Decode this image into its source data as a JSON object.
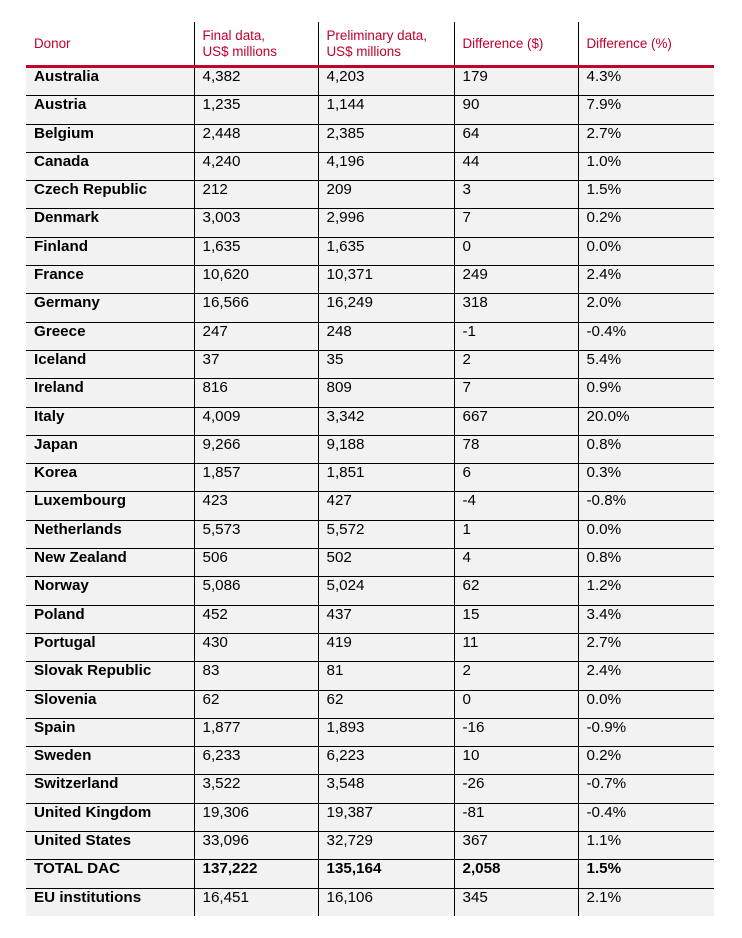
{
  "headers": [
    "Donor",
    "Final data,\nUS$ millions",
    "Preliminary data,\nUS$ millions",
    "Difference ($)",
    "Difference (%)"
  ],
  "accent_color": "#c0002f",
  "rows": [
    [
      "Australia",
      "4,382",
      "4,203",
      "179",
      "4.3%"
    ],
    [
      "Austria",
      "1,235",
      "1,144",
      "90",
      "7.9%"
    ],
    [
      "Belgium",
      "2,448",
      "2,385",
      "64",
      "2.7%"
    ],
    [
      "Canada",
      "4,240",
      "4,196",
      "44",
      "1.0%"
    ],
    [
      "Czech Republic",
      "212",
      "209",
      "3",
      "1.5%"
    ],
    [
      "Denmark",
      "3,003",
      "2,996",
      "7",
      "0.2%"
    ],
    [
      "Finland",
      "1,635",
      "1,635",
      "0",
      "0.0%"
    ],
    [
      "France",
      "10,620",
      "10,371",
      "249",
      "2.4%"
    ],
    [
      "Germany",
      "16,566",
      "16,249",
      "318",
      "2.0%"
    ],
    [
      "Greece",
      "247",
      "248",
      "-1",
      "-0.4%"
    ],
    [
      "Iceland",
      "37",
      "35",
      "2",
      "5.4%"
    ],
    [
      "Ireland",
      "816",
      "809",
      "7",
      "0.9%"
    ],
    [
      "Italy",
      "4,009",
      "3,342",
      "667",
      "20.0%"
    ],
    [
      "Japan",
      "9,266",
      "9,188",
      "78",
      "0.8%"
    ],
    [
      "Korea",
      "1,857",
      "1,851",
      "6",
      "0.3%"
    ],
    [
      "Luxembourg",
      "423",
      "427",
      "-4",
      "-0.8%"
    ],
    [
      "Netherlands",
      "5,573",
      "5,572",
      "1",
      "0.0%"
    ],
    [
      "New Zealand",
      "506",
      "502",
      "4",
      "0.8%"
    ],
    [
      "Norway",
      "5,086",
      "5,024",
      "62",
      "1.2%"
    ],
    [
      "Poland",
      "452",
      "437",
      "15",
      "3.4%"
    ],
    [
      "Portugal",
      "430",
      "419",
      "11",
      "2.7%"
    ],
    [
      "Slovak Republic",
      "83",
      "81",
      "2",
      "2.4%"
    ],
    [
      "Slovenia",
      "62",
      "62",
      "0",
      "0.0%"
    ],
    [
      "Spain",
      "1,877",
      "1,893",
      "-16",
      "-0.9%"
    ],
    [
      "Sweden",
      "6,233",
      "6,223",
      "10",
      "0.2%"
    ],
    [
      "Switzerland",
      "3,522",
      "3,548",
      "-26",
      "-0.7%"
    ],
    [
      "United Kingdom",
      "19,306",
      "19,387",
      "-81",
      "-0.4%"
    ],
    [
      "United States",
      "33,096",
      "32,729",
      "367",
      "1.1%"
    ],
    [
      "TOTAL DAC",
      "137,222",
      "135,164",
      "2,058",
      "1.5%"
    ],
    [
      "EU institutions",
      "16,451",
      "16,106",
      "345",
      "2.1%"
    ]
  ],
  "bold_row": "TOTAL DAC"
}
